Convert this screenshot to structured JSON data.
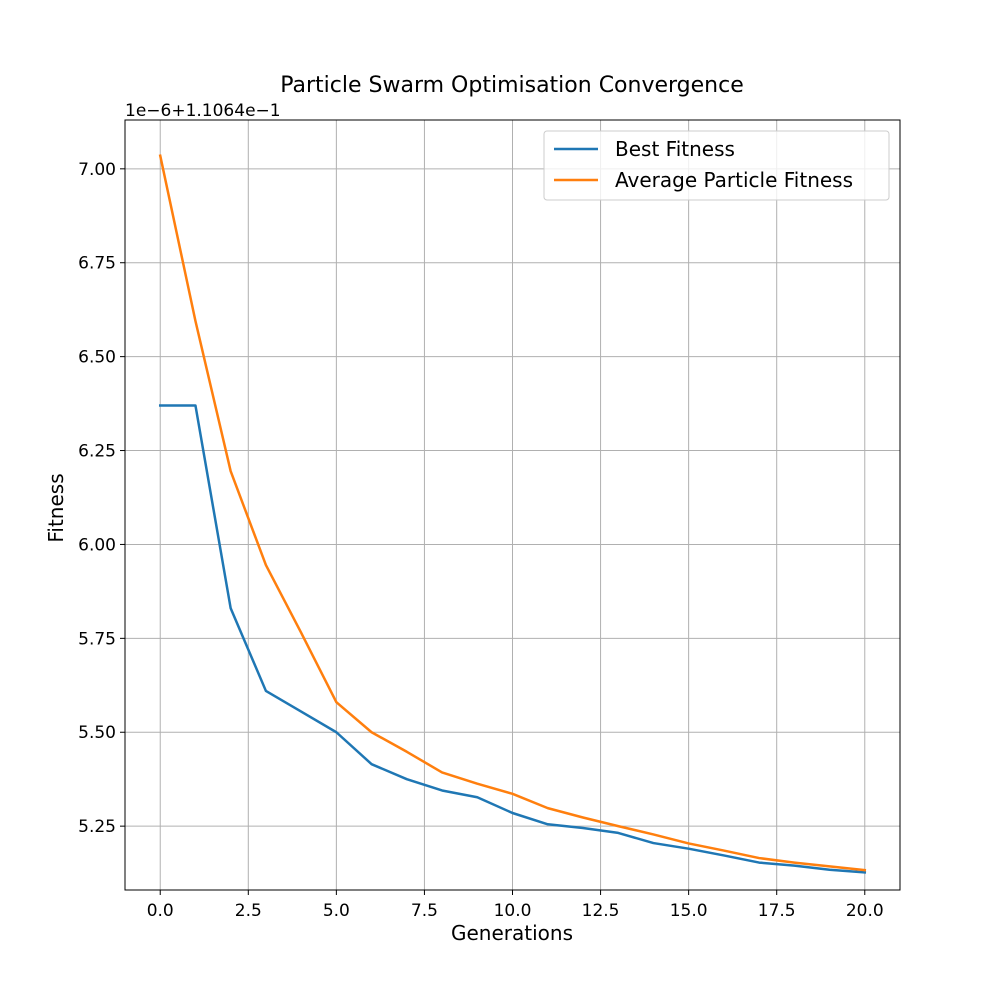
{
  "chart_data": {
    "type": "line",
    "title": "Particle Swarm Optimisation Convergence",
    "xlabel": "Generations",
    "ylabel": "Fitness",
    "y_offset_label": "1e−6+1.1064e−1",
    "xlim": [
      -1.0,
      21.0
    ],
    "ylim": [
      5.08,
      7.13
    ],
    "xticks": [
      0,
      2.5,
      5,
      7.5,
      10,
      12.5,
      15,
      17.5,
      20
    ],
    "xtick_labels": [
      "0.0",
      "2.5",
      "5.0",
      "7.5",
      "10.0",
      "12.5",
      "15.0",
      "17.5",
      "20.0"
    ],
    "yticks": [
      5.25,
      5.5,
      5.75,
      6.0,
      6.25,
      6.5,
      6.75,
      7.0
    ],
    "ytick_labels": [
      "5.25",
      "5.50",
      "5.75",
      "6.00",
      "6.25",
      "6.50",
      "6.75",
      "7.00"
    ],
    "grid": true,
    "legend_position": "top-right",
    "x": [
      0,
      1,
      2,
      3,
      4,
      5,
      6,
      7,
      8,
      9,
      10,
      11,
      12,
      13,
      14,
      15,
      16,
      17,
      18,
      19,
      20
    ],
    "series": [
      {
        "name": "Best Fitness",
        "color": "#1f77b4",
        "values": [
          6.37,
          6.37,
          5.83,
          5.61,
          5.555,
          5.5,
          5.415,
          5.375,
          5.345,
          5.327,
          5.285,
          5.255,
          5.245,
          5.232,
          5.205,
          5.19,
          5.172,
          5.153,
          5.145,
          5.134,
          5.127
        ]
      },
      {
        "name": "Average Particle Fitness",
        "color": "#ff7f0e",
        "values": [
          7.035,
          6.595,
          6.195,
          5.945,
          5.765,
          5.58,
          5.5,
          5.448,
          5.393,
          5.363,
          5.336,
          5.298,
          5.273,
          5.25,
          5.228,
          5.204,
          5.185,
          5.165,
          5.153,
          5.143,
          5.133
        ]
      }
    ]
  }
}
